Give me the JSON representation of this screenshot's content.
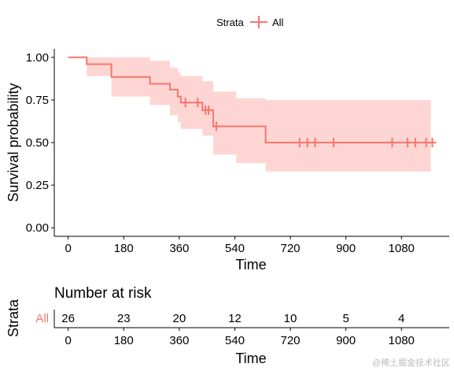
{
  "chart_data": {
    "type": "line",
    "subtype": "kaplan-meier survival curve",
    "legend": {
      "title": "Strata",
      "entries": [
        "All"
      ],
      "placement": "top"
    },
    "series": [
      {
        "name": "All",
        "color": "#f8766d",
        "band_color": "#fdd6d3",
        "steps": [
          {
            "t": 0,
            "s": 1.0
          },
          {
            "t": 60,
            "s": 0.96
          },
          {
            "t": 140,
            "s": 0.885
          },
          {
            "t": 265,
            "s": 0.845
          },
          {
            "t": 330,
            "s": 0.81
          },
          {
            "t": 355,
            "s": 0.77
          },
          {
            "t": 365,
            "s": 0.735
          },
          {
            "t": 435,
            "s": 0.69
          },
          {
            "t": 470,
            "s": 0.595
          },
          {
            "t": 545,
            "s": 0.595
          },
          {
            "t": 640,
            "s": 0.5
          },
          {
            "t": 1175,
            "s": 0.5
          }
        ],
        "ci_steps": [
          {
            "t": 0,
            "lo": 1.0,
            "hi": 1.0
          },
          {
            "t": 60,
            "lo": 0.89,
            "hi": 1.0
          },
          {
            "t": 140,
            "lo": 0.77,
            "hi": 1.0
          },
          {
            "t": 265,
            "lo": 0.72,
            "hi": 0.98
          },
          {
            "t": 330,
            "lo": 0.66,
            "hi": 0.94
          },
          {
            "t": 355,
            "lo": 0.62,
            "hi": 0.91
          },
          {
            "t": 365,
            "lo": 0.58,
            "hi": 0.89
          },
          {
            "t": 435,
            "lo": 0.54,
            "hi": 0.86
          },
          {
            "t": 470,
            "lo": 0.43,
            "hi": 0.8
          },
          {
            "t": 545,
            "lo": 0.38,
            "hi": 0.76
          },
          {
            "t": 640,
            "lo": 0.33,
            "hi": 0.75
          },
          {
            "t": 1175,
            "lo": 0.33,
            "hi": 0.75
          }
        ],
        "censor_times": [
          380,
          420,
          445,
          455,
          480,
          750,
          775,
          800,
          860,
          1050,
          1100,
          1125,
          1160,
          1180
        ]
      }
    ],
    "x_axis": {
      "label": "Time",
      "ticks": [
        0,
        180,
        360,
        540,
        720,
        900,
        1080
      ],
      "range": [
        -45,
        1235
      ]
    },
    "y_axis": {
      "label": "Survival probability",
      "ticks": [
        0.0,
        0.25,
        0.5,
        0.75,
        1.0
      ],
      "tick_labels": [
        "0.00",
        "0.25",
        "0.50",
        "0.75",
        "1.00"
      ],
      "range": [
        -0.05,
        1.05
      ]
    },
    "grid": false,
    "risk_table": {
      "title": "Number at risk",
      "y_label": "Strata",
      "strata": [
        "All"
      ],
      "times": [
        0,
        180,
        360,
        540,
        720,
        900,
        1080
      ],
      "counts": [
        26,
        23,
        20,
        12,
        10,
        5,
        4
      ],
      "x_label": "Time",
      "tick_labels": [
        "0",
        "180",
        "360",
        "540",
        "720",
        "900",
        "1080"
      ]
    }
  },
  "watermark": "@稀土掘金技术社区"
}
